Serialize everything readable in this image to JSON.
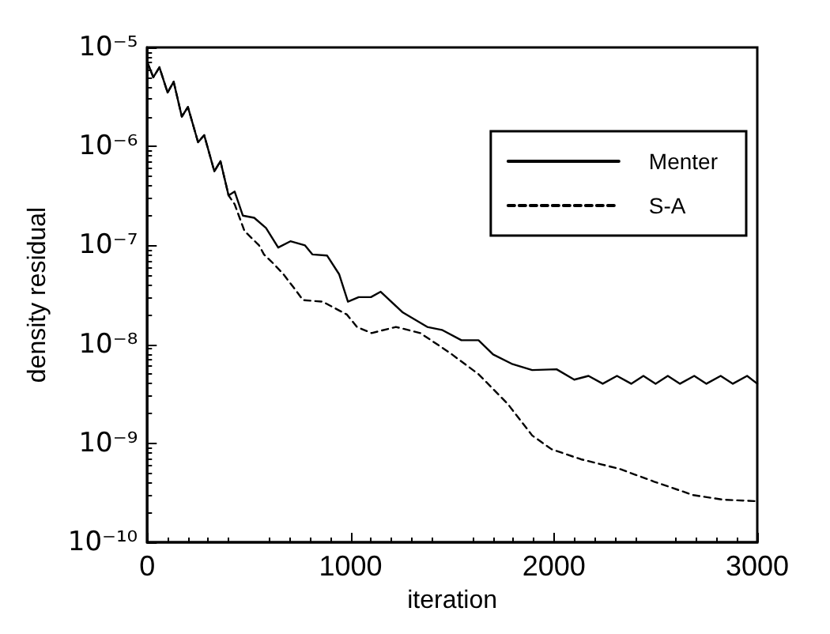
{
  "chart_data": {
    "type": "line",
    "xlabel": "iteration",
    "ylabel": "density residual",
    "log": "y",
    "xlim": [
      0,
      3000
    ],
    "xticks": [
      0,
      1000,
      2000,
      3000
    ],
    "ylim": [
      1e-10,
      1e-05
    ],
    "yticks": [
      {
        "value": 1e-10,
        "label": "10⁻¹⁰"
      },
      {
        "value": 1e-09,
        "label": "10⁻⁹"
      },
      {
        "value": 1e-08,
        "label": "10⁻⁸"
      },
      {
        "value": 1e-07,
        "label": "10⁻⁷"
      },
      {
        "value": 1e-06,
        "label": "10⁻⁶"
      },
      {
        "value": 1e-05,
        "label": "10⁻⁵"
      }
    ],
    "grid": false,
    "legend": "top right",
    "marker": "none",
    "series": [
      {
        "name": "Menter",
        "color": "#000000",
        "line_style": "solid",
        "x": [
          0,
          30,
          60,
          100,
          130,
          170,
          200,
          250,
          280,
          330,
          360,
          400,
          430,
          470,
          526,
          584,
          644,
          704,
          776,
          812,
          884,
          944,
          987,
          1040,
          1100,
          1148,
          1257,
          1377,
          1449,
          1545,
          1629,
          1701,
          1797,
          1893,
          2013,
          2100,
          2170,
          2240,
          2310,
          2380,
          2440,
          2500,
          2560,
          2620,
          2690,
          2750,
          2820,
          2880,
          2950,
          3000
        ],
        "values": [
          7.1e-06,
          5e-06,
          6.3e-06,
          3.5e-06,
          4.5e-06,
          2e-06,
          2.5e-06,
          1.1e-06,
          1.3e-06,
          5.6e-07,
          7.1e-07,
          3.2e-07,
          3.5e-07,
          2e-07,
          1.9e-07,
          1.5e-07,
          9.5e-08,
          1.1e-07,
          1e-07,
          8.1e-08,
          7.9e-08,
          5.1e-08,
          2.7e-08,
          3e-08,
          3e-08,
          3.4e-08,
          2.1e-08,
          1.5e-08,
          1.4e-08,
          1.1e-08,
          1.1e-08,
          7.9e-09,
          6.3e-09,
          5.5e-09,
          5.6e-09,
          4.4e-09,
          4.8e-09,
          4e-09,
          4.8e-09,
          4e-09,
          4.8e-09,
          4e-09,
          4.8e-09,
          4e-09,
          4.8e-09,
          4e-09,
          4.8e-09,
          4e-09,
          4.8e-09,
          4e-09
        ]
      },
      {
        "name": "S-A",
        "color": "#000000",
        "line_style": "dashed",
        "x": [
          0,
          30,
          60,
          100,
          130,
          170,
          200,
          250,
          280,
          330,
          360,
          400,
          430,
          478,
          550,
          574,
          622,
          670,
          718,
          766,
          862,
          982,
          1031,
          1103,
          1223,
          1343,
          1485,
          1629,
          1773,
          1893,
          1989,
          2133,
          2325,
          2493,
          2685,
          2829,
          3000
        ],
        "values": [
          7.1e-06,
          5e-06,
          6.3e-06,
          3.5e-06,
          4.5e-06,
          2e-06,
          2.5e-06,
          1.1e-06,
          1.3e-06,
          5.6e-07,
          7.1e-07,
          3.2e-07,
          2.6e-07,
          1.4e-07,
          1e-07,
          8.1e-08,
          6.5e-08,
          5.1e-08,
          3.8e-08,
          2.8e-08,
          2.7e-08,
          2e-08,
          1.5e-08,
          1.3e-08,
          1.5e-08,
          1.3e-08,
          8.3e-09,
          5e-09,
          2.5e-09,
          1.2e-09,
          8.7e-10,
          6.9e-10,
          5.5e-10,
          4.1e-10,
          3e-10,
          2.7e-10,
          2.6e-10
        ]
      }
    ]
  }
}
